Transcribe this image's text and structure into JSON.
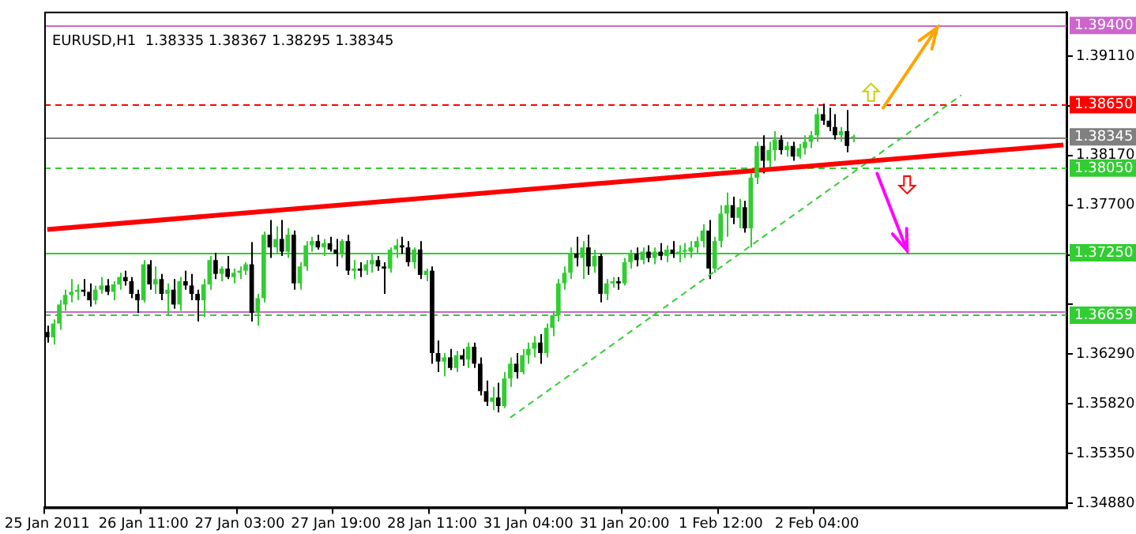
{
  "chart_data": {
    "type": "candlestick",
    "title": "EURUSD,H1  1.38335 1.38367 1.38295 1.38345",
    "categories": [
      "25 Jan 2011",
      null,
      null,
      null,
      null,
      null,
      null,
      null,
      null,
      null,
      null,
      null,
      null,
      null,
      null,
      null,
      "26 Jan 11:00",
      null,
      null,
      null,
      null,
      null,
      null,
      null,
      null,
      null,
      null,
      null,
      null,
      null,
      null,
      null,
      "27 Jan 03:00",
      null,
      null,
      null,
      null,
      null,
      null,
      null,
      null,
      null,
      null,
      null,
      null,
      null,
      null,
      null,
      "27 Jan 19:00",
      null,
      null,
      null,
      null,
      null,
      null,
      null,
      null,
      null,
      null,
      null,
      null,
      null,
      null,
      null,
      "28 Jan 11:00",
      null,
      null,
      null,
      null,
      null,
      null,
      null,
      null,
      null,
      null,
      null,
      null,
      null,
      null,
      null,
      "31 Jan 04:00",
      null,
      null,
      null,
      null,
      null,
      null,
      null,
      null,
      null,
      null,
      null,
      null,
      null,
      null,
      null,
      "31 Jan 20:00",
      null,
      null,
      null,
      null,
      null,
      null,
      null,
      null,
      null,
      null,
      null,
      null,
      null,
      null,
      null,
      "1 Feb 12:00",
      null,
      null,
      null,
      null,
      null,
      null,
      null,
      null,
      null,
      null,
      null,
      null,
      null,
      null,
      null,
      "2 Feb 04:00",
      null,
      null,
      null,
      null,
      null,
      null,
      null,
      null,
      null,
      null,
      null,
      null,
      null,
      null,
      null,
      null,
      null,
      null,
      null,
      null,
      null,
      null,
      null,
      null,
      null,
      null,
      null,
      null,
      null,
      null,
      null,
      null,
      null,
      null,
      null,
      null,
      null,
      null,
      null,
      null,
      null
    ],
    "ohlc": [
      [
        1.365,
        1.3656,
        1.364,
        1.3645
      ],
      [
        1.3645,
        1.3662,
        1.3638,
        1.3658
      ],
      [
        1.3658,
        1.368,
        1.3652,
        1.3676
      ],
      [
        1.3676,
        1.369,
        1.367,
        1.3685
      ],
      [
        1.3685,
        1.37,
        1.3678,
        1.3688
      ],
      [
        1.3688,
        1.3695,
        1.368,
        1.369
      ],
      [
        1.369,
        1.37,
        1.3684,
        1.3688
      ],
      [
        1.3688,
        1.3696,
        1.3674,
        1.368
      ],
      [
        1.368,
        1.3694,
        1.3676,
        1.369
      ],
      [
        1.369,
        1.3702,
        1.3686,
        1.3694
      ],
      [
        1.3694,
        1.37,
        1.3685,
        1.3688
      ],
      [
        1.3688,
        1.3698,
        1.368,
        1.3695
      ],
      [
        1.3695,
        1.3706,
        1.369,
        1.3702
      ],
      [
        1.3702,
        1.3708,
        1.3694,
        1.3698
      ],
      [
        1.3698,
        1.3702,
        1.3682,
        1.3686
      ],
      [
        1.3686,
        1.369,
        1.3668,
        1.368
      ],
      [
        1.368,
        1.3718,
        1.3678,
        1.3714
      ],
      [
        1.3714,
        1.3718,
        1.369,
        1.3695
      ],
      [
        1.3695,
        1.3712,
        1.3686,
        1.37
      ],
      [
        1.37,
        1.3705,
        1.368,
        1.3686
      ],
      [
        1.3686,
        1.3696,
        1.3666,
        1.369
      ],
      [
        1.369,
        1.37,
        1.3672,
        1.3676
      ],
      [
        1.3676,
        1.3702,
        1.367,
        1.3698
      ],
      [
        1.3698,
        1.3708,
        1.369,
        1.3694
      ],
      [
        1.3694,
        1.3705,
        1.368,
        1.3686
      ],
      [
        1.3686,
        1.369,
        1.366,
        1.368
      ],
      [
        1.368,
        1.37,
        1.3664,
        1.3695
      ],
      [
        1.3695,
        1.3722,
        1.369,
        1.3718
      ],
      [
        1.3718,
        1.3725,
        1.37,
        1.3705
      ],
      [
        1.3705,
        1.3712,
        1.3698,
        1.371
      ],
      [
        1.371,
        1.3722,
        1.37,
        1.3702
      ],
      [
        1.3702,
        1.371,
        1.3696,
        1.3706
      ],
      [
        1.3706,
        1.3712,
        1.37,
        1.3708
      ],
      [
        1.3708,
        1.3716,
        1.3704,
        1.3714
      ],
      [
        1.3714,
        1.3735,
        1.366,
        1.3668
      ],
      [
        1.3668,
        1.3686,
        1.3656,
        1.3682
      ],
      [
        1.3682,
        1.3745,
        1.3678,
        1.3742
      ],
      [
        1.3742,
        1.3756,
        1.372,
        1.373
      ],
      [
        1.373,
        1.375,
        1.3724,
        1.3738
      ],
      [
        1.3738,
        1.3756,
        1.3722,
        1.3726
      ],
      [
        1.3726,
        1.3748,
        1.372,
        1.3742
      ],
      [
        1.3742,
        1.3746,
        1.369,
        1.3696
      ],
      [
        1.3696,
        1.3716,
        1.369,
        1.3712
      ],
      [
        1.3712,
        1.3736,
        1.3708,
        1.3732
      ],
      [
        1.3732,
        1.374,
        1.3726,
        1.3736
      ],
      [
        1.3736,
        1.3742,
        1.3728,
        1.373
      ],
      [
        1.373,
        1.3738,
        1.3722,
        1.3734
      ],
      [
        1.3734,
        1.374,
        1.3726,
        1.3728
      ],
      [
        1.3728,
        1.3738,
        1.3712,
        1.3724
      ],
      [
        1.3724,
        1.3738,
        1.372,
        1.3736
      ],
      [
        1.3736,
        1.3742,
        1.3704,
        1.3708
      ],
      [
        1.3708,
        1.3718,
        1.37,
        1.371
      ],
      [
        1.371,
        1.3716,
        1.3702,
        1.3708
      ],
      [
        1.3708,
        1.3718,
        1.3704,
        1.3714
      ],
      [
        1.3714,
        1.3724,
        1.3706,
        1.3718
      ],
      [
        1.3718,
        1.3722,
        1.3708,
        1.3712
      ],
      [
        1.3712,
        1.3716,
        1.3686,
        1.371
      ],
      [
        1.371,
        1.373,
        1.3706,
        1.3728
      ],
      [
        1.3728,
        1.3738,
        1.372,
        1.3732
      ],
      [
        1.3732,
        1.374,
        1.3724,
        1.373
      ],
      [
        1.373,
        1.3736,
        1.3712,
        1.3716
      ],
      [
        1.3716,
        1.373,
        1.371,
        1.3728
      ],
      [
        1.3728,
        1.3736,
        1.37,
        1.3704
      ],
      [
        1.3704,
        1.371,
        1.3698,
        1.3708
      ],
      [
        1.3708,
        1.3712,
        1.362,
        1.363
      ],
      [
        1.363,
        1.3642,
        1.3612,
        1.3622
      ],
      [
        1.3622,
        1.363,
        1.3608,
        1.3626
      ],
      [
        1.3626,
        1.3634,
        1.3614,
        1.3616
      ],
      [
        1.3616,
        1.3632,
        1.3612,
        1.3628
      ],
      [
        1.3628,
        1.3634,
        1.3618,
        1.3624
      ],
      [
        1.3624,
        1.364,
        1.3616,
        1.3636
      ],
      [
        1.3636,
        1.364,
        1.3616,
        1.362
      ],
      [
        1.362,
        1.3626,
        1.359,
        1.3594
      ],
      [
        1.3594,
        1.3604,
        1.358,
        1.3584
      ],
      [
        1.3584,
        1.3598,
        1.3576,
        1.3588
      ],
      [
        1.3588,
        1.3602,
        1.3574,
        1.358
      ],
      [
        1.358,
        1.3612,
        1.3578,
        1.3606
      ],
      [
        1.3606,
        1.3626,
        1.3598,
        1.362
      ],
      [
        1.362,
        1.363,
        1.3606,
        1.3612
      ],
      [
        1.3612,
        1.3634,
        1.361,
        1.3628
      ],
      [
        1.3628,
        1.364,
        1.362,
        1.3634
      ],
      [
        1.3634,
        1.3646,
        1.3626,
        1.364
      ],
      [
        1.364,
        1.3648,
        1.362,
        1.363
      ],
      [
        1.363,
        1.3658,
        1.3626,
        1.3654
      ],
      [
        1.3654,
        1.367,
        1.3646,
        1.3666
      ],
      [
        1.3666,
        1.37,
        1.366,
        1.3696
      ],
      [
        1.3696,
        1.3712,
        1.369,
        1.3706
      ],
      [
        1.3706,
        1.373,
        1.37,
        1.3724
      ],
      [
        1.3724,
        1.374,
        1.3712,
        1.372
      ],
      [
        1.372,
        1.3736,
        1.37,
        1.373
      ],
      [
        1.373,
        1.3742,
        1.3704,
        1.3712
      ],
      [
        1.3712,
        1.3728,
        1.3706,
        1.3722
      ],
      [
        1.3722,
        1.3724,
        1.3678,
        1.3686
      ],
      [
        1.3686,
        1.37,
        1.368,
        1.3696
      ],
      [
        1.3696,
        1.3702,
        1.3692,
        1.3698
      ],
      [
        1.3698,
        1.3702,
        1.369,
        1.3696
      ],
      [
        1.3696,
        1.372,
        1.3694,
        1.3716
      ],
      [
        1.3716,
        1.3728,
        1.371,
        1.3724
      ],
      [
        1.3724,
        1.373,
        1.3712,
        1.3718
      ],
      [
        1.3718,
        1.373,
        1.3714,
        1.3726
      ],
      [
        1.3726,
        1.3732,
        1.3716,
        1.372
      ],
      [
        1.372,
        1.373,
        1.3714,
        1.3726
      ],
      [
        1.3726,
        1.3734,
        1.3718,
        1.3722
      ],
      [
        1.3722,
        1.3732,
        1.3716,
        1.3728
      ],
      [
        1.3728,
        1.3736,
        1.372,
        1.3724
      ],
      [
        1.3724,
        1.3732,
        1.3716,
        1.3726
      ],
      [
        1.3726,
        1.3734,
        1.372,
        1.3726
      ],
      [
        1.3726,
        1.3736,
        1.372,
        1.373
      ],
      [
        1.373,
        1.374,
        1.3724,
        1.3736
      ],
      [
        1.3736,
        1.3752,
        1.373,
        1.3746
      ],
      [
        1.3746,
        1.3756,
        1.37,
        1.371
      ],
      [
        1.371,
        1.374,
        1.3706,
        1.3736
      ],
      [
        1.3736,
        1.377,
        1.373,
        1.3762
      ],
      [
        1.3762,
        1.3782,
        1.374,
        1.377
      ],
      [
        1.377,
        1.3778,
        1.3752,
        1.3758
      ],
      [
        1.3758,
        1.3776,
        1.3748,
        1.3768
      ],
      [
        1.3768,
        1.3774,
        1.3744,
        1.3748
      ],
      [
        1.3748,
        1.38,
        1.373,
        1.3796
      ],
      [
        1.3796,
        1.383,
        1.379,
        1.3826
      ],
      [
        1.3826,
        1.3836,
        1.38,
        1.3812
      ],
      [
        1.3812,
        1.383,
        1.3806,
        1.3822
      ],
      [
        1.3822,
        1.384,
        1.3812,
        1.3832
      ],
      [
        1.3832,
        1.3836,
        1.3818,
        1.3822
      ],
      [
        1.3822,
        1.383,
        1.3816,
        1.3826
      ],
      [
        1.3826,
        1.383,
        1.3812,
        1.3816
      ],
      [
        1.3816,
        1.3828,
        1.3814,
        1.3824
      ],
      [
        1.3824,
        1.3836,
        1.3818,
        1.383
      ],
      [
        1.383,
        1.384,
        1.3824,
        1.3836
      ],
      [
        1.3836,
        1.3862,
        1.383,
        1.3856
      ],
      [
        1.3856,
        1.3866,
        1.3846,
        1.385
      ],
      [
        1.385,
        1.3862,
        1.384,
        1.3844
      ],
      [
        1.3844,
        1.3856,
        1.3832,
        1.3836
      ],
      [
        1.3836,
        1.3844,
        1.383,
        1.384
      ],
      [
        1.384,
        1.386,
        1.382,
        1.3826
      ],
      [
        1.38335,
        1.38367,
        1.38295,
        1.38345
      ],
      null,
      null,
      null,
      null,
      null,
      null,
      null,
      null,
      null,
      null,
      null,
      null,
      null,
      null,
      null,
      null,
      null,
      null,
      null,
      null,
      null,
      null,
      null,
      null,
      null,
      null,
      null,
      null,
      null,
      null,
      null,
      null,
      null,
      null,
      null
    ],
    "series": [
      {
        "type": "line",
        "color": "#ff0000",
        "line_style": "solid",
        "values": [
          1.3747,
          null,
          null,
          null,
          null,
          null,
          null,
          null,
          null,
          null,
          null,
          null,
          null,
          null,
          null,
          null,
          null,
          null,
          null,
          null,
          null,
          null,
          null,
          null,
          null,
          null,
          null,
          null,
          null,
          null,
          null,
          null,
          null,
          null,
          null,
          null,
          null,
          null,
          null,
          null,
          null,
          null,
          null,
          null,
          null,
          null,
          null,
          null,
          null,
          null,
          null,
          null,
          null,
          null,
          null,
          null,
          null,
          null,
          null,
          null,
          null,
          null,
          null,
          null,
          null,
          null,
          null,
          null,
          null,
          null,
          null,
          null,
          null,
          null,
          null,
          null,
          null,
          null,
          null,
          null,
          null,
          null,
          null,
          null,
          null,
          null,
          null,
          null,
          null,
          null,
          null,
          null,
          null,
          null,
          null,
          null,
          null,
          null,
          null,
          null,
          null,
          null,
          null,
          null,
          null,
          null,
          null,
          null,
          null,
          null,
          null,
          null,
          null,
          null,
          null,
          null,
          null,
          null,
          null,
          null,
          null,
          null,
          null,
          null,
          null,
          null,
          null,
          null,
          null,
          null,
          null,
          null,
          null,
          null,
          null,
          null,
          null,
          null,
          null,
          null,
          null,
          null,
          null,
          null,
          null,
          null,
          null,
          null,
          null,
          null,
          null,
          null,
          null,
          null,
          null,
          null,
          null,
          null,
          null,
          null,
          null,
          null,
          null,
          null,
          null,
          null,
          null,
          null,
          null,
          1.3827
        ]
      },
      {
        "type": "line",
        "color": "#32cd32",
        "line_style": "dashed",
        "values": [
          null,
          null,
          null,
          null,
          null,
          null,
          null,
          null,
          null,
          null,
          null,
          null,
          null,
          null,
          null,
          null,
          null,
          null,
          null,
          null,
          null,
          null,
          null,
          null,
          null,
          null,
          null,
          null,
          null,
          null,
          null,
          null,
          null,
          null,
          null,
          null,
          null,
          null,
          null,
          null,
          null,
          null,
          null,
          null,
          null,
          null,
          null,
          null,
          null,
          null,
          null,
          null,
          null,
          null,
          null,
          null,
          null,
          null,
          null,
          null,
          null,
          null,
          null,
          null,
          null,
          null,
          null,
          null,
          null,
          null,
          null,
          null,
          null,
          null,
          null,
          null,
          null,
          1.3569,
          null,
          null,
          null,
          null,
          null,
          null,
          null,
          null,
          null,
          null,
          null,
          null,
          null,
          null,
          null,
          null,
          null,
          null,
          null,
          null,
          null,
          null,
          null,
          null,
          null,
          null,
          null,
          null,
          null,
          null,
          null,
          null,
          null,
          null,
          null,
          null,
          null,
          null,
          null,
          null,
          null,
          null,
          null,
          null,
          null,
          null,
          null,
          null,
          null,
          null,
          null,
          null,
          null,
          null,
          null,
          null,
          null,
          null,
          null,
          null,
          null,
          null,
          null,
          null,
          null,
          null,
          null,
          null,
          null,
          null,
          null,
          null,
          null,
          null,
          1.3874,
          null,
          null,
          null,
          null,
          null,
          null,
          null,
          null,
          null,
          null,
          null,
          null,
          null,
          null,
          null,
          null,
          null
        ]
      }
    ],
    "ref_lines": [
      {
        "axis": "y",
        "value": 1.394,
        "label": "1.39400",
        "color": "#cc66cc",
        "line_style": "solid"
      },
      {
        "axis": "y",
        "value": 1.3865,
        "label": "1.38650",
        "color": "#ff0000",
        "line_style": "dashed"
      },
      {
        "axis": "y",
        "value": 1.38345,
        "label": "1.38345",
        "color": "#808080",
        "line_style": "solid"
      },
      {
        "axis": "y",
        "value": 1.3805,
        "label": "1.38050",
        "color": "#32cd32",
        "line_style": "dashed"
      },
      {
        "axis": "y",
        "value": 1.3725,
        "label": "1.37250",
        "color": "#32cd32",
        "line_style": "solid"
      },
      {
        "axis": "y",
        "value": 1.3669,
        "color": "#cc66cc",
        "line_style": "solid"
      },
      {
        "axis": "y",
        "value": 1.36659,
        "label": "1.36659",
        "color": "#32cd32",
        "line_style": "dashed"
      }
    ],
    "ylim": [
      1.3484,
      1.3953
    ],
    "yticks": [
      {
        "value": 1.3488,
        "label": "1.34880"
      },
      {
        "value": 1.3535,
        "label": "1.35350"
      },
      {
        "value": 1.3582,
        "label": "1.35820"
      },
      {
        "value": 1.3629,
        "label": "1.36290"
      },
      {
        "value": 1.3676,
        "label": null
      },
      {
        "value": 1.3723,
        "label": null
      },
      {
        "value": 1.377,
        "label": "1.37700"
      },
      {
        "value": 1.3817,
        "label": "1.38170"
      },
      {
        "value": 1.3864,
        "label": null
      },
      {
        "value": 1.3911,
        "label": "1.39110"
      }
    ],
    "grid": false
  }
}
